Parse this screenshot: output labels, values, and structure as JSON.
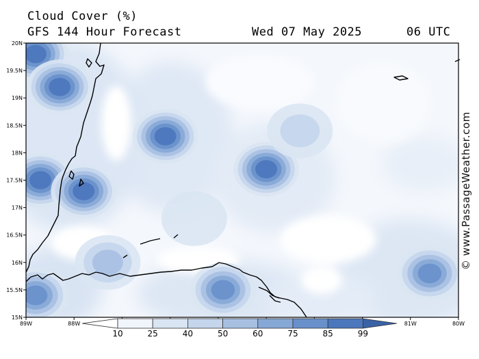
{
  "header": {
    "title": "Cloud Cover (%)",
    "model": "GFS 144 Hour Forecast",
    "date": "Wed 07 May 2025",
    "time": "06 UTC"
  },
  "copyright": "© www.PassageWeather.com",
  "axes": {
    "lat_labels": [
      "20N",
      "19.5N",
      "19N",
      "18.5N",
      "18N",
      "17.5N",
      "17N",
      "16.5N",
      "16N",
      "15.5N",
      "15N"
    ],
    "lon_labels": [
      "89W",
      "88W",
      "87W",
      "86W",
      "85W",
      "84W",
      "83W",
      "82W",
      "81W",
      "80W"
    ]
  },
  "legend": {
    "ticks": [
      "10",
      "25",
      "40",
      "50",
      "60",
      "75",
      "85",
      "99"
    ],
    "colors": [
      "#ffffff",
      "#f0f4fb",
      "#dae5f3",
      "#c4d5ec",
      "#a7c0e2",
      "#86a8d6",
      "#6890cb",
      "#4b77bc",
      "#3a62a6"
    ]
  },
  "cloud_cells": [
    {
      "lon": -88.8,
      "lat": 19.8,
      "level": 85
    },
    {
      "lon": -88.3,
      "lat": 19.2,
      "level": 85
    },
    {
      "lon": -88.7,
      "lat": 17.5,
      "level": 85
    },
    {
      "lon": -87.8,
      "lat": 17.3,
      "level": 85
    },
    {
      "lon": -86.1,
      "lat": 18.3,
      "level": 85
    },
    {
      "lon": -84.0,
      "lat": 17.7,
      "level": 85
    },
    {
      "lon": -80.6,
      "lat": 15.8,
      "level": 75
    },
    {
      "lon": -84.9,
      "lat": 15.5,
      "level": 75
    },
    {
      "lon": -88.8,
      "lat": 15.4,
      "level": 75
    },
    {
      "lon": -83.3,
      "lat": 18.4,
      "level": 40
    },
    {
      "lon": -85.5,
      "lat": 16.8,
      "level": 25
    },
    {
      "lon": -87.3,
      "lat": 16.0,
      "level": 50
    }
  ]
}
